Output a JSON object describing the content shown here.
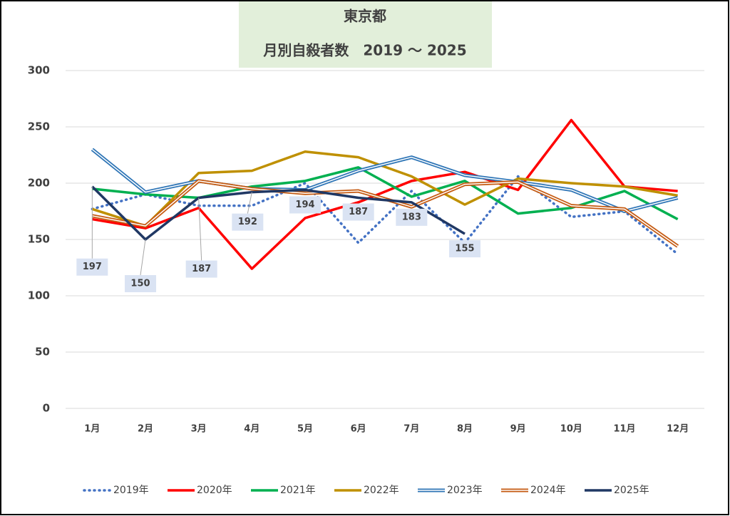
{
  "chart_data": {
    "type": "line",
    "title": "東京都",
    "subtitle": "月別自殺者数　2019 ～ 2025",
    "categories": [
      "1月",
      "2月",
      "3月",
      "4月",
      "5月",
      "6月",
      "7月",
      "8月",
      "9月",
      "10月",
      "11月",
      "12月"
    ],
    "ylim": [
      0,
      300
    ],
    "yticks": [
      0,
      50,
      100,
      150,
      200,
      250,
      300
    ],
    "grid": true,
    "legend": "bottom",
    "series": [
      {
        "name": "2019年",
        "color": "#4472c4",
        "style": "dotted",
        "values": [
          177,
          190,
          180,
          180,
          200,
          147,
          193,
          147,
          206,
          170,
          175,
          137
        ]
      },
      {
        "name": "2020年",
        "color": "#ff0000",
        "style": "solid",
        "values": [
          168,
          160,
          178,
          124,
          169,
          183,
          202,
          210,
          194,
          256,
          197,
          193
        ]
      },
      {
        "name": "2021年",
        "color": "#00b050",
        "style": "solid",
        "values": [
          195,
          190,
          187,
          197,
          202,
          214,
          188,
          202,
          173,
          178,
          193,
          168
        ]
      },
      {
        "name": "2022年",
        "color": "#bf9000",
        "style": "solid",
        "values": [
          177,
          162,
          209,
          211,
          228,
          223,
          206,
          181,
          204,
          200,
          197,
          189
        ]
      },
      {
        "name": "2023年",
        "color": "#2e75b6",
        "style": "double",
        "values": [
          230,
          192,
          202,
          195,
          194,
          211,
          223,
          207,
          201,
          194,
          175,
          187
        ]
      },
      {
        "name": "2024年",
        "color": "#c55a11",
        "style": "double",
        "values": [
          171,
          162,
          202,
          195,
          191,
          193,
          179,
          199,
          201,
          180,
          177,
          144
        ]
      },
      {
        "name": "2025年",
        "color": "#203864",
        "style": "solid",
        "data_labels": true,
        "values": [
          197,
          150,
          187,
          192,
          194,
          187,
          183,
          155,
          null,
          null,
          null,
          null
        ]
      }
    ]
  }
}
